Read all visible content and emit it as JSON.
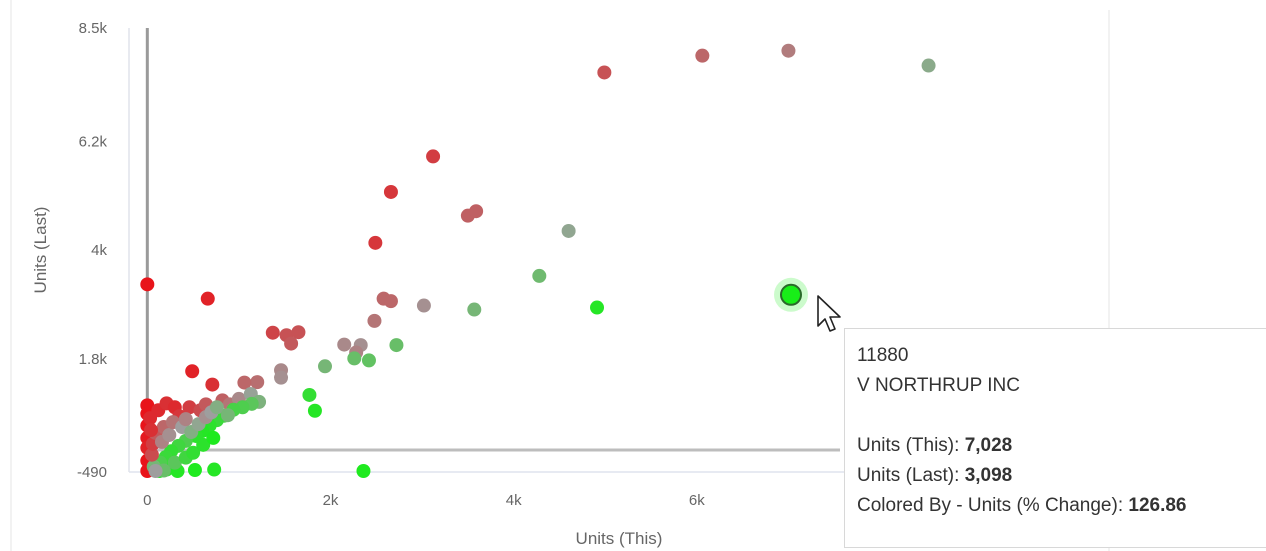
{
  "chart_data": {
    "type": "scatter",
    "xlabel": "Units (This)",
    "ylabel": "Units (Last)",
    "xlim": [
      -200,
      10500
    ],
    "ylim": [
      -490,
      8500
    ],
    "xticks": [
      {
        "v": 0,
        "label": "0"
      },
      {
        "v": 2000,
        "label": "2k"
      },
      {
        "v": 4000,
        "label": "4k"
      },
      {
        "v": 6000,
        "label": "6k"
      }
    ],
    "yticks": [
      {
        "v": 8500,
        "label": "8.5k"
      },
      {
        "v": 6200,
        "label": "6.2k"
      },
      {
        "v": 4000,
        "label": "4k"
      },
      {
        "v": 1800,
        "label": "1.8k"
      },
      {
        "v": -490,
        "label": "-490"
      }
    ],
    "color_scale": {
      "negative": "#e8141a",
      "neutral": "#9e9e9e",
      "positive": "#18ee18"
    },
    "points": [
      {
        "x": 4990,
        "y": 7600,
        "c": -0.55
      },
      {
        "x": 6060,
        "y": 7940,
        "c": -0.4
      },
      {
        "x": 7000,
        "y": 8040,
        "c": -0.25
      },
      {
        "x": 8530,
        "y": 7740,
        "c": 0.15
      },
      {
        "x": 3120,
        "y": 5900,
        "c": -0.7
      },
      {
        "x": 2660,
        "y": 5180,
        "c": -0.75
      },
      {
        "x": 3500,
        "y": 4700,
        "c": -0.45
      },
      {
        "x": 3590,
        "y": 4790,
        "c": -0.45
      },
      {
        "x": 4600,
        "y": 4390,
        "c": 0.1
      },
      {
        "x": 2490,
        "y": 4150,
        "c": -0.75
      },
      {
        "x": 4280,
        "y": 3480,
        "c": 0.35
      },
      {
        "x": 0,
        "y": 3310,
        "c": -1.0
      },
      {
        "x": 660,
        "y": 3020,
        "c": -0.9
      },
      {
        "x": 2580,
        "y": 3020,
        "c": -0.4
      },
      {
        "x": 2660,
        "y": 2970,
        "c": -0.4
      },
      {
        "x": 3020,
        "y": 2880,
        "c": -0.1
      },
      {
        "x": 3570,
        "y": 2800,
        "c": 0.3
      },
      {
        "x": 4910,
        "y": 2840,
        "c": 0.9
      },
      {
        "x": 7028,
        "y": 3098,
        "c": 1.0
      },
      {
        "x": 2480,
        "y": 2570,
        "c": -0.3
      },
      {
        "x": 1370,
        "y": 2330,
        "c": -0.65
      },
      {
        "x": 1520,
        "y": 2280,
        "c": -0.55
      },
      {
        "x": 1650,
        "y": 2340,
        "c": -0.55
      },
      {
        "x": 1570,
        "y": 2110,
        "c": -0.5
      },
      {
        "x": 2150,
        "y": 2090,
        "c": -0.15
      },
      {
        "x": 2330,
        "y": 2080,
        "c": -0.1
      },
      {
        "x": 2280,
        "y": 1930,
        "c": -0.2
      },
      {
        "x": 2720,
        "y": 2080,
        "c": 0.4
      },
      {
        "x": 2260,
        "y": 1810,
        "c": 0.4
      },
      {
        "x": 2420,
        "y": 1770,
        "c": 0.45
      },
      {
        "x": 1940,
        "y": 1650,
        "c": 0.3
      },
      {
        "x": 490,
        "y": 1550,
        "c": -0.9
      },
      {
        "x": 1460,
        "y": 1570,
        "c": -0.15
      },
      {
        "x": 1460,
        "y": 1420,
        "c": -0.1
      },
      {
        "x": 1200,
        "y": 1330,
        "c": -0.35
      },
      {
        "x": 1060,
        "y": 1320,
        "c": -0.4
      },
      {
        "x": 710,
        "y": 1280,
        "c": -0.8
      },
      {
        "x": 1770,
        "y": 1070,
        "c": 0.8
      },
      {
        "x": 1830,
        "y": 750,
        "c": 0.9
      },
      {
        "x": 2360,
        "y": -470,
        "c": 0.95
      },
      {
        "x": 0,
        "y": 860,
        "c": -1.0
      },
      {
        "x": 0,
        "y": 690,
        "c": -1.0
      },
      {
        "x": 0,
        "y": 450,
        "c": -1.0
      },
      {
        "x": 0,
        "y": 200,
        "c": -0.95
      },
      {
        "x": 0,
        "y": 0,
        "c": -0.9
      },
      {
        "x": 0,
        "y": -260,
        "c": -1.0
      },
      {
        "x": 0,
        "y": -470,
        "c": -1.0
      },
      {
        "x": 130,
        "y": -470,
        "c": 0.9
      },
      {
        "x": 210,
        "y": -440,
        "c": 0.85
      },
      {
        "x": 330,
        "y": -470,
        "c": 0.9
      },
      {
        "x": 520,
        "y": -450,
        "c": 0.95
      },
      {
        "x": 730,
        "y": -440,
        "c": 0.9
      },
      {
        "x": 120,
        "y": 760,
        "c": -0.85
      },
      {
        "x": 210,
        "y": 900,
        "c": -0.8
      },
      {
        "x": 300,
        "y": 820,
        "c": -0.85
      },
      {
        "x": 350,
        "y": 640,
        "c": -0.75
      },
      {
        "x": 460,
        "y": 820,
        "c": -0.7
      },
      {
        "x": 580,
        "y": 760,
        "c": -0.6
      },
      {
        "x": 640,
        "y": 880,
        "c": -0.5
      },
      {
        "x": 820,
        "y": 960,
        "c": -0.45
      },
      {
        "x": 900,
        "y": 880,
        "c": -0.3
      },
      {
        "x": 1000,
        "y": 990,
        "c": -0.15
      },
      {
        "x": 1130,
        "y": 1090,
        "c": 0.05
      },
      {
        "x": 1220,
        "y": 930,
        "c": 0.25
      },
      {
        "x": 1140,
        "y": 890,
        "c": 0.5
      },
      {
        "x": 1040,
        "y": 820,
        "c": 0.6
      },
      {
        "x": 940,
        "y": 770,
        "c": 0.65
      },
      {
        "x": 840,
        "y": 650,
        "c": 0.6
      },
      {
        "x": 760,
        "y": 560,
        "c": 0.75
      },
      {
        "x": 680,
        "y": 450,
        "c": 0.85
      },
      {
        "x": 600,
        "y": 340,
        "c": 0.9
      },
      {
        "x": 530,
        "y": 240,
        "c": 0.85
      },
      {
        "x": 420,
        "y": 140,
        "c": 0.6
      },
      {
        "x": 340,
        "y": 40,
        "c": 0.7
      },
      {
        "x": 260,
        "y": -70,
        "c": 0.8
      },
      {
        "x": 200,
        "y": -190,
        "c": 0.75
      },
      {
        "x": 140,
        "y": -300,
        "c": 0.6
      },
      {
        "x": 70,
        "y": -380,
        "c": 0.3
      },
      {
        "x": 50,
        "y": -140,
        "c": -0.6
      },
      {
        "x": 60,
        "y": 80,
        "c": -0.7
      },
      {
        "x": 90,
        "y": 300,
        "c": -0.5
      },
      {
        "x": 160,
        "y": 120,
        "c": -0.2
      },
      {
        "x": 180,
        "y": 420,
        "c": -0.4
      },
      {
        "x": 240,
        "y": 260,
        "c": -0.1
      },
      {
        "x": 280,
        "y": 520,
        "c": -0.3
      },
      {
        "x": 380,
        "y": 420,
        "c": 0.0
      },
      {
        "x": 420,
        "y": 580,
        "c": -0.2
      },
      {
        "x": 480,
        "y": 320,
        "c": 0.2
      },
      {
        "x": 560,
        "y": 480,
        "c": 0.1
      },
      {
        "x": 640,
        "y": 620,
        "c": -0.1
      },
      {
        "x": 700,
        "y": 720,
        "c": 0.0
      },
      {
        "x": 760,
        "y": 820,
        "c": 0.2
      },
      {
        "x": 880,
        "y": 660,
        "c": 0.3
      },
      {
        "x": 300,
        "y": -300,
        "c": 0.5
      },
      {
        "x": 420,
        "y": -200,
        "c": 0.7
      },
      {
        "x": 500,
        "y": -100,
        "c": 0.8
      },
      {
        "x": 610,
        "y": 60,
        "c": 0.85
      },
      {
        "x": 720,
        "y": 200,
        "c": 0.95
      },
      {
        "x": 180,
        "y": -460,
        "c": 0.4
      },
      {
        "x": 90,
        "y": -470,
        "c": 0.0
      },
      {
        "x": 30,
        "y": 600,
        "c": -0.85
      },
      {
        "x": 40,
        "y": 360,
        "c": -0.8
      }
    ],
    "highlighted_point": {
      "x": 7028,
      "y": 3098
    }
  },
  "tooltip": {
    "id": "11880",
    "name": "V  NORTHRUP INC",
    "rows": [
      {
        "label": "Units (This): ",
        "value": "7,028"
      },
      {
        "label": "Units (Last): ",
        "value": "3,098"
      },
      {
        "label": "Colored By - Units (% Change): ",
        "value": "126.86"
      }
    ]
  }
}
